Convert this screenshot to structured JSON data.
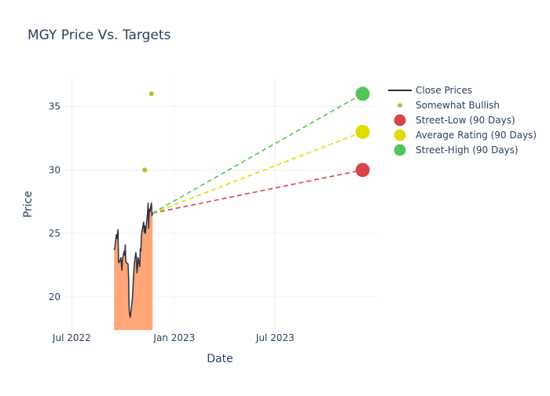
{
  "chart_data": {
    "type": "line",
    "title": "MGY Price Vs. Targets",
    "xlabel": "Date",
    "ylabel": "Price",
    "x_ticks": [
      {
        "date": "2022-07-01",
        "label": "Jul 2022"
      },
      {
        "date": "2023-01-01",
        "label": "Jan 2023"
      },
      {
        "date": "2023-07-01",
        "label": "Jul 2023"
      }
    ],
    "y_ticks": [
      20,
      25,
      30,
      35
    ],
    "xlim": [
      "2022-06-15",
      "2023-12-31"
    ],
    "ylim": [
      17.4,
      37.2
    ],
    "close_prices": {
      "name": "Close Prices",
      "color": "#2a3142",
      "fill_color": "#ffa577",
      "points": [
        [
          "2022-09-15",
          23.7
        ],
        [
          "2022-09-16",
          23.8
        ],
        [
          "2022-09-19",
          24.9
        ],
        [
          "2022-09-20",
          24.6
        ],
        [
          "2022-09-21",
          24.9
        ],
        [
          "2022-09-22",
          25.3
        ],
        [
          "2022-09-23",
          22.7
        ],
        [
          "2022-09-26",
          22.9
        ],
        [
          "2022-09-27",
          23.1
        ],
        [
          "2022-09-28",
          22.6
        ],
        [
          "2022-09-29",
          22.1
        ],
        [
          "2022-09-30",
          23.0
        ],
        [
          "2022-10-03",
          23.6
        ],
        [
          "2022-10-04",
          23.3
        ],
        [
          "2022-10-05",
          24.1
        ],
        [
          "2022-10-06",
          22.8
        ],
        [
          "2022-10-07",
          22.7
        ],
        [
          "2022-10-10",
          22.6
        ],
        [
          "2022-10-11",
          21.5
        ],
        [
          "2022-10-12",
          19.0
        ],
        [
          "2022-10-13",
          18.6
        ],
        [
          "2022-10-14",
          18.4
        ],
        [
          "2022-10-17",
          19.6
        ],
        [
          "2022-10-18",
          20.0
        ],
        [
          "2022-10-19",
          20.9
        ],
        [
          "2022-10-20",
          21.8
        ],
        [
          "2022-10-21",
          22.5
        ],
        [
          "2022-10-24",
          23.5
        ],
        [
          "2022-10-25",
          23.1
        ],
        [
          "2022-10-26",
          21.9
        ],
        [
          "2022-10-27",
          22.3
        ],
        [
          "2022-10-28",
          23.1
        ],
        [
          "2022-10-31",
          22.4
        ],
        [
          "2022-11-01",
          23.8
        ],
        [
          "2022-11-02",
          23.6
        ],
        [
          "2022-11-03",
          24.8
        ],
        [
          "2022-11-04",
          25.2
        ],
        [
          "2022-11-07",
          25.9
        ],
        [
          "2022-11-08",
          25.1
        ],
        [
          "2022-11-09",
          25.6
        ],
        [
          "2022-11-10",
          25.0
        ],
        [
          "2022-11-11",
          25.4
        ],
        [
          "2022-11-14",
          26.6
        ],
        [
          "2022-11-15",
          27.4
        ],
        [
          "2022-11-16",
          25.4
        ],
        [
          "2022-11-17",
          26.9
        ],
        [
          "2022-11-18",
          26.7
        ],
        [
          "2022-11-21",
          27.4
        ],
        [
          "2022-11-22",
          26.4
        ],
        [
          "2022-11-23",
          26.6
        ]
      ]
    },
    "somewhat_bullish": {
      "name": "Somewhat Bullish",
      "color": "#9acd32",
      "points": [
        [
          "2022-11-09",
          30.0
        ],
        [
          "2022-11-21",
          36.0
        ]
      ]
    },
    "targets": {
      "origin": [
        "2022-11-23",
        26.6
      ],
      "date": "2023-12-05",
      "series": [
        {
          "name": "Street-Low (90 Days)",
          "value": 30.0,
          "color": "#d9444a"
        },
        {
          "name": "Average Rating (90 Days)",
          "value": 33.0,
          "color": "#dfdd00"
        },
        {
          "name": "Street-High (90 Days)",
          "value": 36.0,
          "color": "#55c45a"
        }
      ]
    },
    "legend": {
      "position": "top-right",
      "entries": [
        "Close Prices",
        "Somewhat Bullish",
        "Street-Low (90 Days)",
        "Average Rating (90 Days)",
        "Street-High (90 Days)"
      ]
    },
    "grid": true
  }
}
